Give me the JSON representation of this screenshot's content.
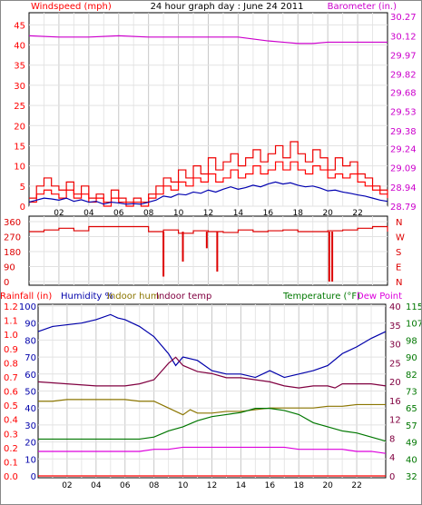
{
  "colors": {
    "wind": "#ff0000",
    "gust": "#ee0000",
    "avg": "#0000b0",
    "barometer": "#cc00cc",
    "direction": "#dd0000",
    "rain": "#ff0000",
    "humidity": "#0000aa",
    "indoor_hum": "#8b7500",
    "indoor_temp": "#800040",
    "temperature": "#007700",
    "dew_point": "#dd00dd",
    "grid": "#c8c8c8",
    "frame": "#000000"
  },
  "x_ticks": [
    "02",
    "04",
    "06",
    "08",
    "10",
    "12",
    "14",
    "16",
    "18",
    "20",
    "22"
  ],
  "chart_data": [
    {
      "type": "line",
      "title": "24 hour graph day : June 24 2011",
      "y_left_label": "Windspeed (mph)",
      "y_right_label": "Barometer (in.)",
      "y_left_ticks": [
        "45",
        "40",
        "35",
        "30",
        "25",
        "20",
        "15",
        "10",
        "5",
        "0"
      ],
      "y_right_ticks": [
        "30.27",
        "30.12",
        "29.97",
        "29.82",
        "29.68",
        "29.53",
        "29.38",
        "29.24",
        "29.09",
        "28.94",
        "28.79"
      ],
      "ylim_left": [
        0,
        48
      ],
      "ylim_right": [
        28.79,
        30.3
      ],
      "series": [
        {
          "key": "gust",
          "hours": [
            0,
            0.5,
            1,
            1.5,
            2,
            2.5,
            3,
            3.5,
            4,
            4.5,
            5,
            5.5,
            6,
            6.5,
            7,
            7.5,
            8,
            8.5,
            9,
            9.5,
            10,
            10.5,
            11,
            11.5,
            12,
            12.5,
            13,
            13.5,
            14,
            14.5,
            15,
            15.5,
            16,
            16.5,
            17,
            17.5,
            18,
            18.5,
            19,
            19.5,
            20,
            20.5,
            21,
            21.5,
            22,
            22.5,
            23,
            23.5,
            24
          ],
          "values": [
            2,
            5,
            7,
            5,
            4,
            6,
            3,
            5,
            2,
            3,
            1,
            4,
            2,
            1,
            2,
            1,
            3,
            5,
            7,
            6,
            9,
            7,
            10,
            8,
            12,
            9,
            11,
            13,
            10,
            12,
            14,
            11,
            13,
            15,
            12,
            16,
            13,
            11,
            14,
            12,
            9,
            12,
            10,
            11,
            8,
            7,
            5,
            4,
            3
          ]
        },
        {
          "key": "wind",
          "hours": [
            0,
            0.5,
            1,
            1.5,
            2,
            2.5,
            3,
            3.5,
            4,
            4.5,
            5,
            5.5,
            6,
            6.5,
            7,
            7.5,
            8,
            8.5,
            9,
            9.5,
            10,
            10.5,
            11,
            11.5,
            12,
            12.5,
            13,
            13.5,
            14,
            14.5,
            15,
            15.5,
            16,
            16.5,
            17,
            17.5,
            18,
            18.5,
            19,
            19.5,
            20,
            20.5,
            21,
            21.5,
            22,
            22.5,
            23,
            23.5,
            24
          ],
          "values": [
            1,
            3,
            4,
            3,
            2,
            4,
            2,
            3,
            1,
            2,
            0,
            2,
            1,
            0,
            1,
            0,
            2,
            3,
            5,
            4,
            6,
            5,
            7,
            6,
            8,
            6,
            7,
            9,
            7,
            8,
            10,
            8,
            9,
            11,
            9,
            11,
            9,
            8,
            10,
            9,
            7,
            8,
            7,
            8,
            6,
            5,
            4,
            3,
            2
          ]
        },
        {
          "key": "avg",
          "hours": [
            0,
            0.5,
            1,
            1.5,
            2,
            2.5,
            3,
            3.5,
            4,
            4.5,
            5,
            5.5,
            6,
            6.5,
            7,
            7.5,
            8,
            8.5,
            9,
            9.5,
            10,
            10.5,
            11,
            11.5,
            12,
            12.5,
            13,
            13.5,
            14,
            14.5,
            15,
            15.5,
            16,
            16.5,
            17,
            17.5,
            18,
            18.5,
            19,
            19.5,
            20,
            20.5,
            21,
            21.5,
            22,
            22.5,
            23,
            23.5,
            24
          ],
          "values": [
            1,
            1.5,
            2,
            1.8,
            1.5,
            2,
            1.2,
            1.6,
            1,
            1.2,
            0.5,
            1,
            0.8,
            0.5,
            0.6,
            0.5,
            1,
            1.5,
            2.5,
            2.2,
            3,
            2.8,
            3.5,
            3.2,
            4,
            3.5,
            4.2,
            4.8,
            4.2,
            4.6,
            5.2,
            4.8,
            5.5,
            6,
            5.5,
            5.8,
            5.2,
            4.8,
            5,
            4.5,
            3.8,
            4,
            3.5,
            3.2,
            2.8,
            2.5,
            2,
            1.5,
            1.2
          ]
        },
        {
          "key": "barometer",
          "axis": "right",
          "hours": [
            0,
            2,
            4,
            6,
            8,
            10,
            12,
            14,
            16,
            17,
            18,
            19,
            20,
            22,
            24
          ],
          "values": [
            30.12,
            30.11,
            30.11,
            30.12,
            30.11,
            30.11,
            30.11,
            30.11,
            30.08,
            30.07,
            30.06,
            30.06,
            30.07,
            30.07,
            30.07
          ]
        }
      ]
    },
    {
      "type": "line",
      "title": "",
      "y_left_ticks": [
        "360",
        "270",
        "180",
        "90",
        "0"
      ],
      "y_right_ticks": [
        "N",
        "W",
        "S",
        "E",
        "N"
      ],
      "ylim": [
        0,
        360
      ],
      "series": [
        {
          "key": "direction",
          "hours": [
            0,
            1,
            2,
            3,
            4,
            5,
            6,
            7,
            8,
            9,
            10,
            11,
            12,
            13,
            14,
            15,
            16,
            17,
            18,
            19,
            20,
            21,
            22,
            23,
            24
          ],
          "values": [
            300,
            310,
            320,
            305,
            330,
            330,
            330,
            330,
            300,
            310,
            290,
            305,
            300,
            295,
            310,
            300,
            305,
            310,
            300,
            300,
            305,
            310,
            320,
            330,
            300
          ],
          "spikes": [
            {
              "hour": 9.0,
              "value": 30
            },
            {
              "hour": 10.3,
              "value": 120
            },
            {
              "hour": 11.9,
              "value": 200
            },
            {
              "hour": 12.6,
              "value": 60
            },
            {
              "hour": 20.1,
              "value": 0
            },
            {
              "hour": 20.3,
              "value": 0
            }
          ]
        }
      ]
    },
    {
      "type": "line",
      "title": "",
      "legend_left": [
        {
          "text": "Rainfall (in)",
          "key": "rain"
        },
        {
          "text": "Humidity %",
          "key": "humidity"
        },
        {
          "text": "Indoor hum",
          "key": "indoor_hum"
        },
        {
          "text": "Indoor temp",
          "key": "indoor_temp"
        }
      ],
      "legend_right": [
        {
          "text": "Temperature (°F)",
          "key": "temperature"
        },
        {
          "text": "Dew Point",
          "key": "dew_point"
        }
      ],
      "y_rain_ticks": [
        "1.2",
        "1.1",
        "1.0",
        "0.9",
        "0.8",
        "0.7",
        "0.6",
        "0.5",
        "0.4",
        "0.3",
        "0.2",
        "0.1",
        "0.0"
      ],
      "y_hum_ticks": [
        "100",
        "90",
        "80",
        "70",
        "60",
        "50",
        "40",
        "30",
        "20",
        "10",
        "0"
      ],
      "y_temp_c_ticks": [
        "40",
        "35",
        "30",
        "25",
        "20",
        "16",
        "12",
        "8",
        "4",
        "0"
      ],
      "y_temp_f_ticks": [
        "115",
        "107",
        "98",
        "90",
        "82",
        "73",
        "65",
        "57",
        "49",
        "40",
        "32"
      ],
      "ylim_humidity": [
        0,
        100
      ],
      "ylim_temp_f": [
        32,
        115
      ],
      "series": [
        {
          "key": "humidity",
          "axis": "humidity",
          "hours": [
            0,
            1,
            2,
            3,
            4,
            5,
            5.5,
            6,
            7,
            8,
            9,
            9.5,
            10,
            11,
            12,
            13,
            14,
            15,
            16,
            17,
            18,
            19,
            20,
            21,
            22,
            23,
            24
          ],
          "values": [
            85,
            88,
            89,
            90,
            92,
            95,
            93,
            92,
            88,
            82,
            72,
            65,
            70,
            68,
            62,
            60,
            60,
            58,
            62,
            58,
            60,
            62,
            65,
            72,
            76,
            81,
            85
          ]
        },
        {
          "key": "indoor_temp",
          "axis": "temp_f",
          "hours": [
            0,
            2,
            4,
            6,
            7,
            8,
            9,
            9.5,
            10,
            11,
            12,
            13,
            14,
            15,
            16,
            17,
            18,
            19,
            20,
            20.5,
            21,
            22,
            23,
            24
          ],
          "values": [
            78,
            77,
            76,
            76,
            77,
            79,
            87,
            90,
            86,
            83,
            82,
            80,
            80,
            79,
            78,
            76,
            75,
            76,
            76,
            75,
            77,
            77,
            77,
            76
          ]
        },
        {
          "key": "indoor_hum",
          "axis": "humidity",
          "hours": [
            0,
            1,
            2,
            4,
            6,
            7,
            8,
            9,
            9.5,
            10,
            10.5,
            11,
            12,
            13,
            14,
            15,
            16,
            17,
            18,
            19,
            20,
            21,
            22,
            23,
            24
          ],
          "values": [
            44,
            44,
            45,
            45,
            45,
            44,
            44,
            40,
            38,
            36,
            39,
            37,
            37,
            38,
            38,
            39,
            40,
            40,
            40,
            40,
            41,
            41,
            42,
            42,
            42
          ]
        },
        {
          "key": "temperature",
          "axis": "temp_f",
          "hours": [
            0,
            2,
            4,
            6,
            7,
            8,
            9,
            10,
            11,
            12,
            13,
            14,
            15,
            16,
            17,
            18,
            19,
            20,
            21,
            22,
            23,
            24
          ],
          "values": [
            50,
            50,
            50,
            50,
            50,
            51,
            54,
            56,
            59,
            61,
            62,
            63,
            65,
            65,
            64,
            62,
            58,
            56,
            54,
            53,
            51,
            49
          ]
        },
        {
          "key": "dew_point",
          "axis": "temp_f",
          "hours": [
            0,
            2,
            4,
            6,
            7,
            8,
            9,
            10,
            11,
            12,
            13,
            14,
            15,
            16,
            17,
            18,
            19,
            20,
            21,
            22,
            23,
            24
          ],
          "values": [
            44,
            44,
            44,
            44,
            44,
            45,
            45,
            46,
            46,
            46,
            46,
            46,
            46,
            46,
            46,
            45,
            45,
            45,
            45,
            44,
            44,
            43
          ]
        },
        {
          "key": "rain",
          "axis": "rain",
          "hours": [
            0,
            24
          ],
          "values": [
            0,
            0
          ]
        }
      ]
    }
  ]
}
